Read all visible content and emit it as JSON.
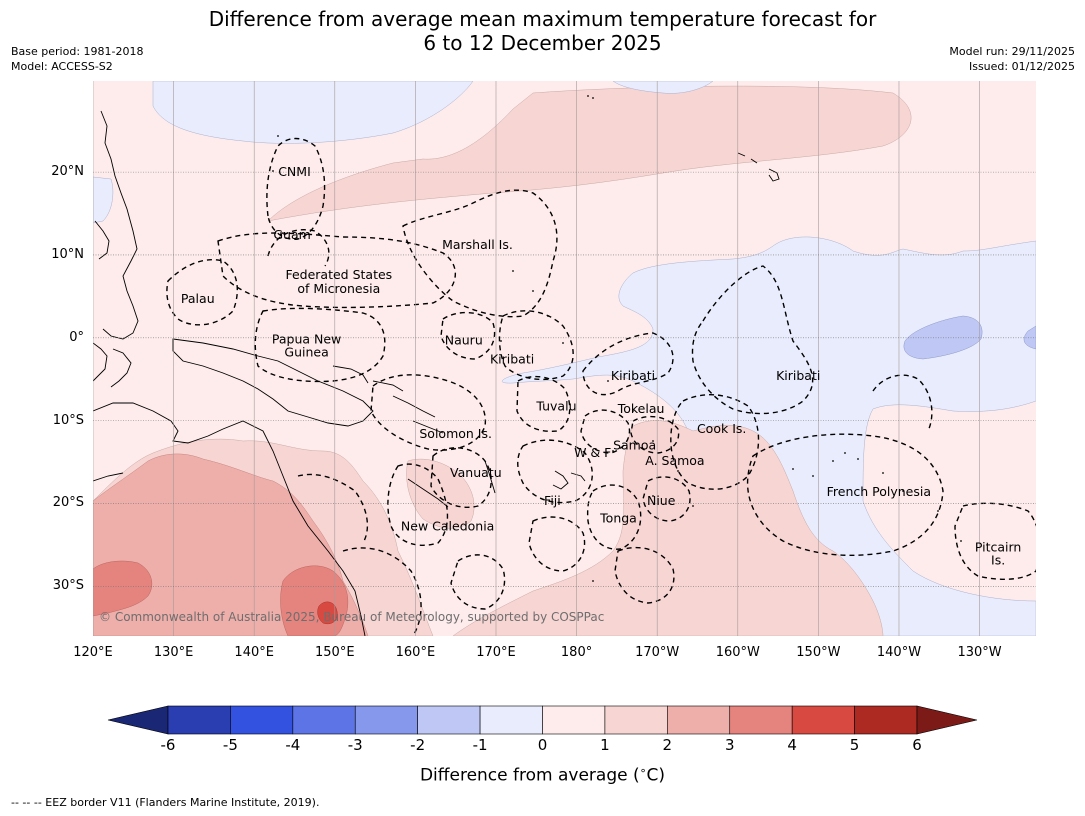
{
  "title": {
    "line1": "Difference from average mean maximum temperature forecast for",
    "line2": "6 to 12 December 2025"
  },
  "meta": {
    "base_period": "Base period: 1981-2018",
    "model": "Model: ACCESS-S2",
    "model_run": "Model run: 29/11/2025",
    "issued": "Issued: 01/12/2025"
  },
  "map": {
    "lon_range": [
      120,
      237
    ],
    "lat_range": [
      -36,
      31
    ],
    "lat_ticks": [
      {
        "value": 20,
        "label": "20°N"
      },
      {
        "value": 10,
        "label": "10°N"
      },
      {
        "value": 0,
        "label": "0°"
      },
      {
        "value": -10,
        "label": "10°S"
      },
      {
        "value": -20,
        "label": "20°S"
      },
      {
        "value": -30,
        "label": "30°S"
      }
    ],
    "lon_ticks": [
      {
        "value": 120,
        "label": "120°E"
      },
      {
        "value": 130,
        "label": "130°E"
      },
      {
        "value": 140,
        "label": "140°E"
      },
      {
        "value": 150,
        "label": "150°E"
      },
      {
        "value": 160,
        "label": "160°E"
      },
      {
        "value": 170,
        "label": "170°E"
      },
      {
        "value": 180,
        "label": "180°"
      },
      {
        "value": 190,
        "label": "170°W"
      },
      {
        "value": 200,
        "label": "160°W"
      },
      {
        "value": 210,
        "label": "150°W"
      },
      {
        "value": 220,
        "label": "140°W"
      },
      {
        "value": 230,
        "label": "130°W"
      }
    ],
    "regions": [
      {
        "name": "CNMI",
        "lon": 145.0,
        "lat": 20.0
      },
      {
        "name": "Guam",
        "lon": 144.7,
        "lat": 12.4
      },
      {
        "name": "Marshall Is.",
        "lon": 167.7,
        "lat": 11.2
      },
      {
        "name": "Federated States",
        "lon": 150.5,
        "lat": 7.6
      },
      {
        "name": "of Micronesia",
        "lon": 150.5,
        "lat": 5.9
      },
      {
        "name": "Palau",
        "lon": 133.0,
        "lat": 4.7
      },
      {
        "name": "Papua New",
        "lon": 146.5,
        "lat": -0.2
      },
      {
        "name": "Guinea",
        "lon": 146.5,
        "lat": -1.8
      },
      {
        "name": "Nauru",
        "lon": 166.0,
        "lat": -0.3
      },
      {
        "name": "Kiribati",
        "lon": 172.0,
        "lat": -2.6
      },
      {
        "name": "Kiribati",
        "lon": 187.0,
        "lat": -4.6
      },
      {
        "name": "Kiribati",
        "lon": 207.5,
        "lat": -4.6
      },
      {
        "name": "Tuvalu",
        "lon": 177.5,
        "lat": -8.3
      },
      {
        "name": "Tokelau",
        "lon": 188.0,
        "lat": -8.6
      },
      {
        "name": "Solomon Is.",
        "lon": 165.0,
        "lat": -11.6
      },
      {
        "name": "Cook Is.",
        "lon": 198.0,
        "lat": -11.0
      },
      {
        "name": "Samoa",
        "lon": 187.2,
        "lat": -13.0
      },
      {
        "name": "W & F",
        "lon": 182.0,
        "lat": -13.9
      },
      {
        "name": "A. Samoa",
        "lon": 192.2,
        "lat": -14.9
      },
      {
        "name": "Vanuatu",
        "lon": 167.5,
        "lat": -16.3
      },
      {
        "name": "French Polynesia",
        "lon": 217.5,
        "lat": -18.6
      },
      {
        "name": "Fiji",
        "lon": 177.0,
        "lat": -19.7
      },
      {
        "name": "Niue",
        "lon": 190.5,
        "lat": -19.7
      },
      {
        "name": "Tonga",
        "lon": 185.2,
        "lat": -21.8
      },
      {
        "name": "New Caledonia",
        "lon": 164.0,
        "lat": -22.8
      },
      {
        "name": "Pitcairn",
        "lon": 232.3,
        "lat": -25.3
      },
      {
        "name": "Is.",
        "lon": 232.3,
        "lat": -26.9
      }
    ],
    "copyright": "© Commonwealth of Australia 2025, Bureau of Meteorology, supported by COSPPac"
  },
  "colorbar": {
    "ticks": [
      "-6",
      "-5",
      "-4",
      "-3",
      "-2",
      "-1",
      "0",
      "1",
      "2",
      "3",
      "4",
      "5",
      "6"
    ],
    "colors": [
      "#192774",
      "#2a3db1",
      "#3352e0",
      "#5c74e5",
      "#8698ec",
      "#bfc8f4",
      "#e8ecfc",
      "#fdeceb",
      "#f7d5d3",
      "#eeaeaa",
      "#e5847e",
      "#d84a41",
      "#ad2a23",
      "#7b1a17"
    ],
    "label": "Difference from average (",
    "label_unit": "C)",
    "label_degree": "∘"
  },
  "footnote": "--  --  -- EEZ border V11 (Flanders Marine Institute, 2019)."
}
